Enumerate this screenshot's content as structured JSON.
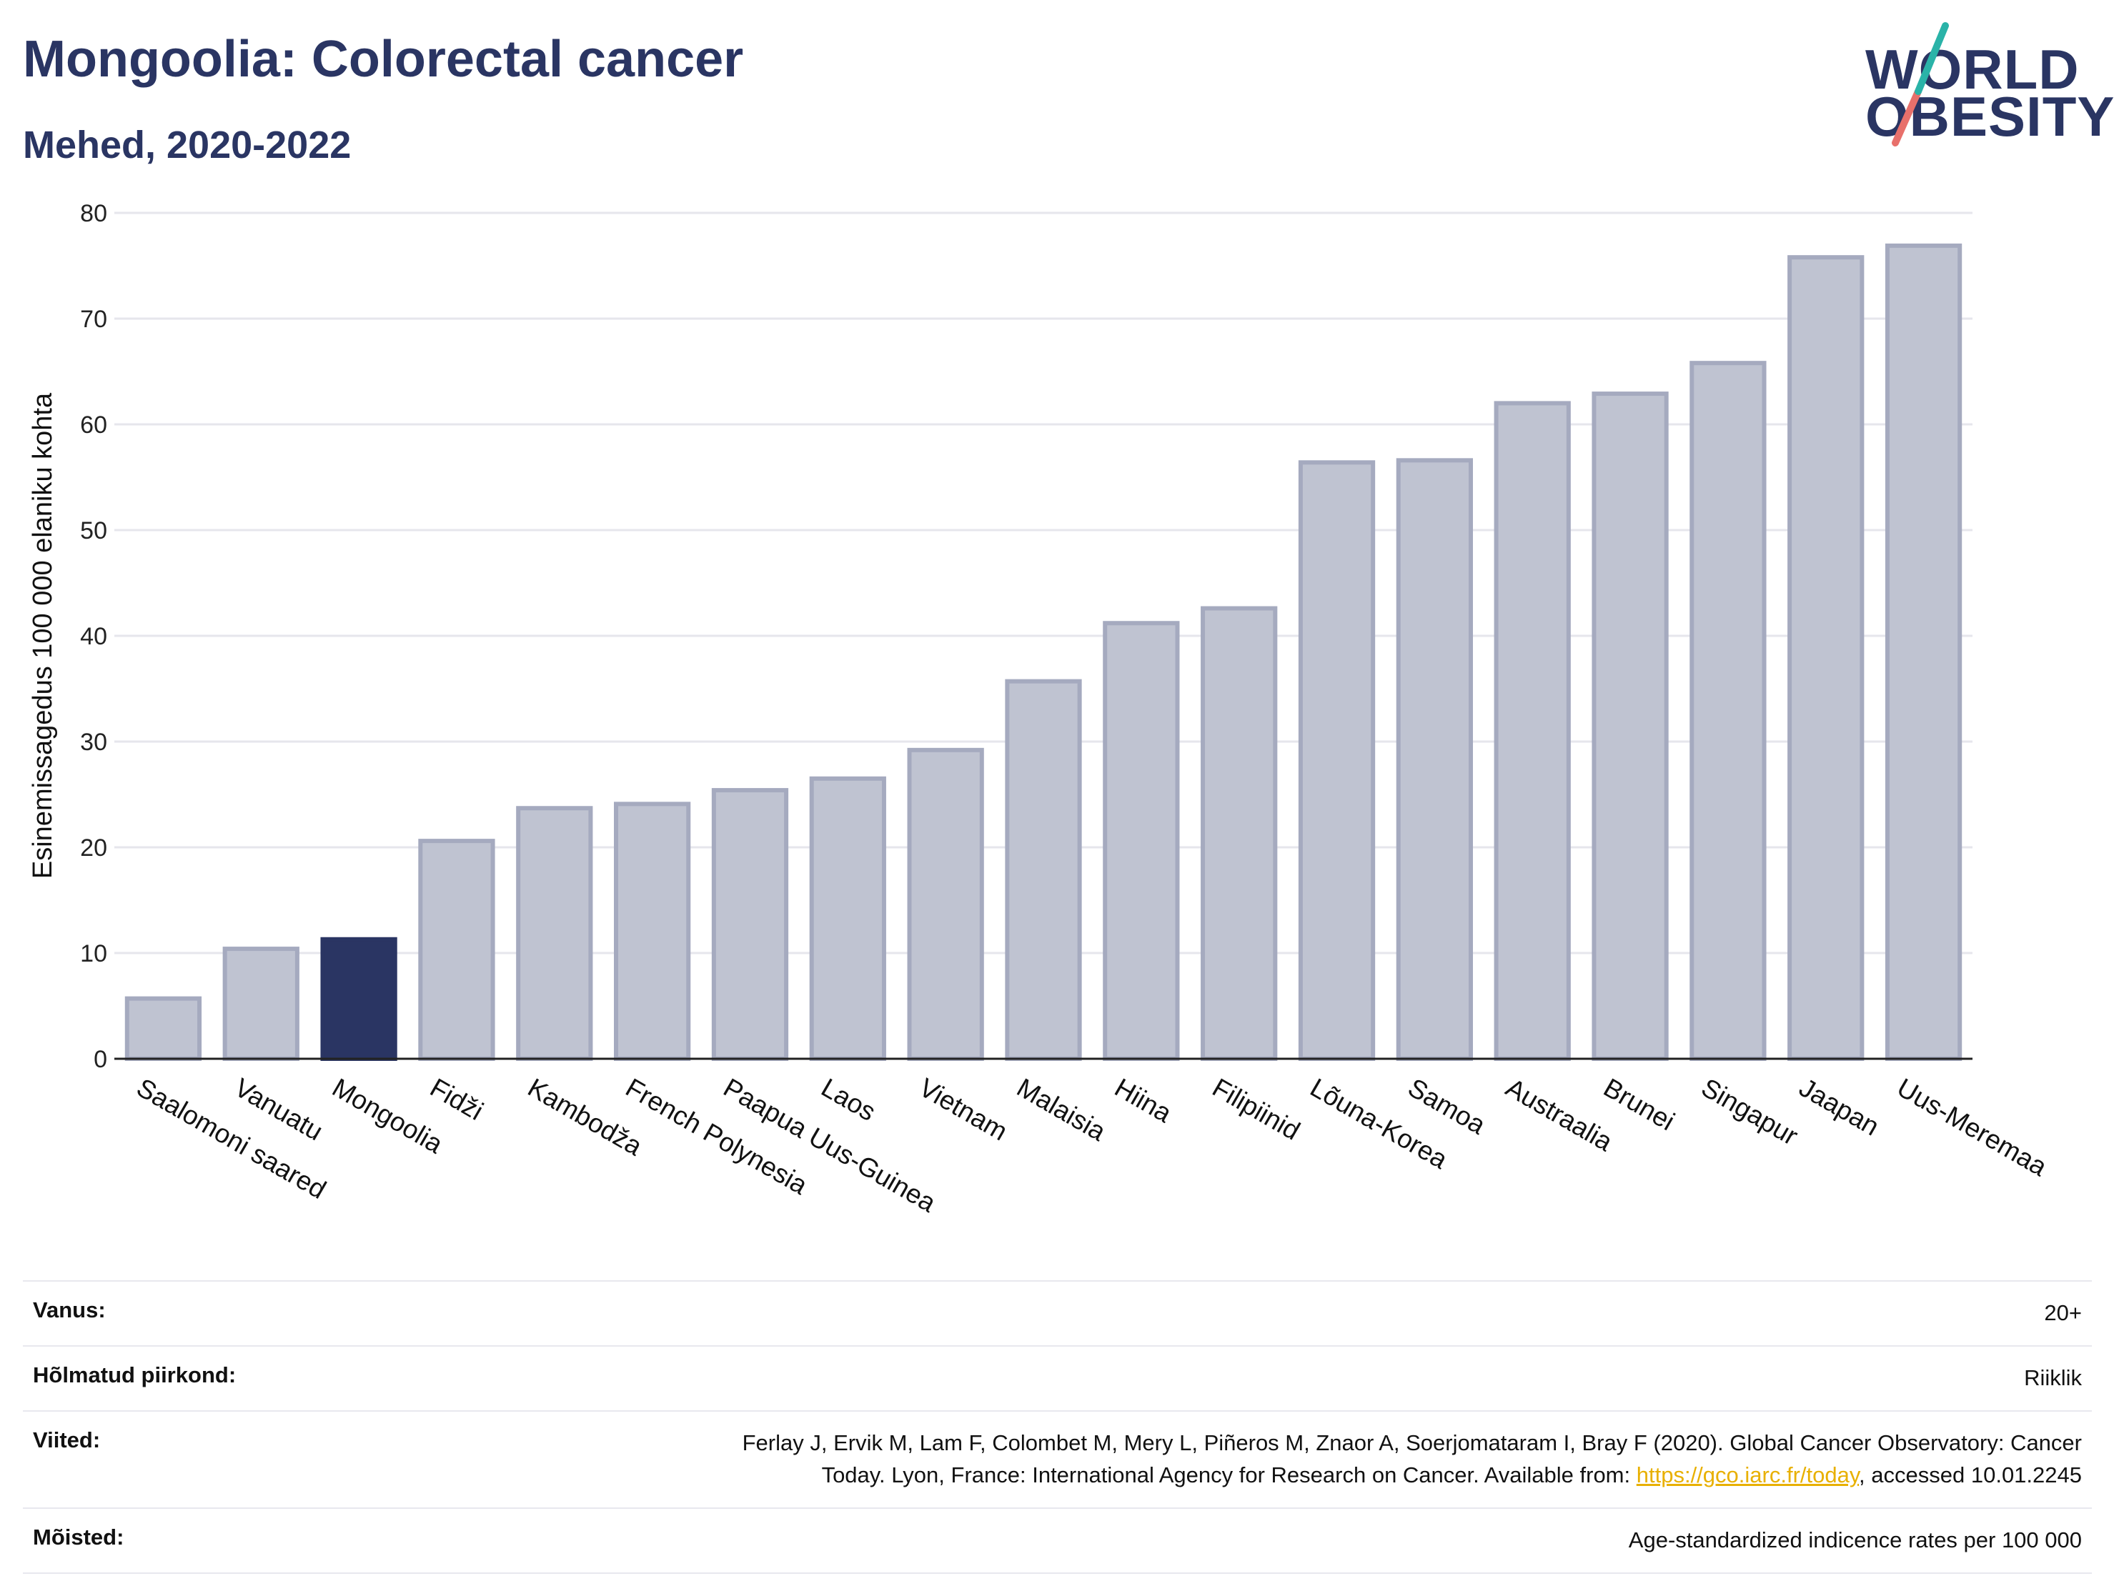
{
  "header": {
    "title": "Mongoolia: Colorectal cancer",
    "subtitle": "Mehed, 2020-2022"
  },
  "logo": {
    "line1": "WORLD",
    "line2": "OBESITY",
    "colors": {
      "text": "#2a3563",
      "slash_teal": "#2ab3a8",
      "slash_coral": "#e8706b"
    }
  },
  "colors": {
    "bar": "#bfc3d1",
    "bar_outline": "#a5aabf",
    "highlight": "#2a3563",
    "grid": "#e6e6ec",
    "axis": "#222222"
  },
  "chart_data": {
    "type": "bar",
    "title": "",
    "xlabel": "",
    "ylabel": "Esinemissagedus 100 000 elaniku kohta",
    "ylim": [
      0,
      80
    ],
    "yticks": [
      0,
      10,
      20,
      30,
      40,
      50,
      60,
      70,
      80
    ],
    "grid": true,
    "categories": [
      "Saalomoni saared",
      "Vanuatu",
      "Mongoolia",
      "Fidži",
      "Kambodža",
      "French Polynesia",
      "Paapua Uus-Guinea",
      "Laos",
      "Vietnam",
      "Malaisia",
      "Hiina",
      "Filipiinid",
      "Lõuna-Korea",
      "Samoa",
      "Austraalia",
      "Brunei",
      "Singapur",
      "Jaapan",
      "Uus-Meremaa"
    ],
    "values": [
      5.7,
      10.4,
      11.3,
      20.6,
      23.7,
      24.1,
      25.4,
      26.5,
      29.2,
      35.7,
      41.2,
      42.6,
      56.4,
      56.6,
      62.0,
      62.9,
      65.8,
      75.8,
      76.9
    ],
    "highlight": "Mongoolia"
  },
  "info": {
    "age_label": "Vanus:",
    "age_value": "20+",
    "region_label": "Hõlmatud piirkond:",
    "region_value": "Riiklik",
    "refs_label": "Viited:",
    "refs_line1": "Ferlay J, Ervik M, Lam F, Colombet M, Mery L, Piñeros M, Znaor A, Soerjomataram I, Bray F (2020). Global Cancer Observatory: Cancer",
    "refs_line2_prefix": "Today. Lyon, France: International Agency for Research on Cancer. Available from: ",
    "refs_link": "https://gco.iarc.fr/today",
    "refs_line2_suffix": ", accessed 10.01.2245",
    "defs_label": "Mõisted:",
    "defs_value": "Age-standardized indicence rates per 100 000"
  }
}
